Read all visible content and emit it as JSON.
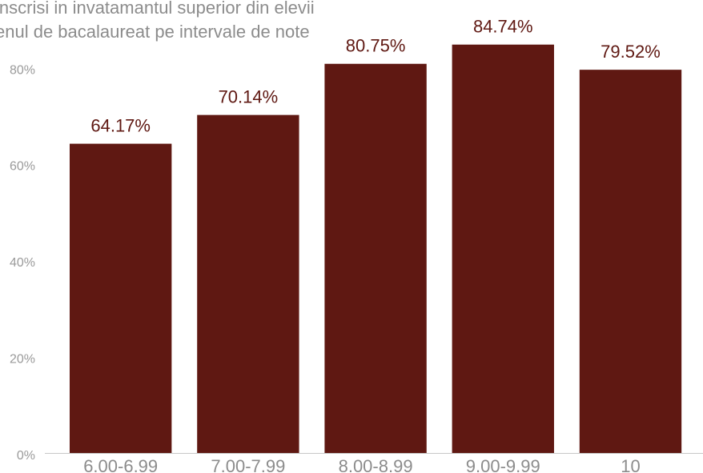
{
  "chart_data": {
    "type": "bar",
    "title_lines": [
      "inscrisi in invatamantul superior din elevii",
      "enul de bacalaureat pe intervale de note"
    ],
    "categories": [
      "6.00-6.99",
      "7.00-7.99",
      "8.00-8.99",
      "9.00-9.99",
      "10"
    ],
    "values": [
      64.17,
      70.14,
      80.75,
      84.74,
      79.52
    ],
    "data_labels": [
      "64.17%",
      "70.14%",
      "80.75%",
      "84.74%",
      "79.52%"
    ],
    "y_ticks": [
      0,
      20,
      40,
      60,
      80
    ],
    "y_tick_labels": [
      "0%",
      "20%",
      "40%",
      "60%",
      "80%"
    ],
    "ylim": [
      0,
      92
    ],
    "grid": false,
    "legend": "none",
    "bar_color": "#5f1812",
    "label_color": "#5f1812",
    "axis_color": "#c8c8c8"
  }
}
